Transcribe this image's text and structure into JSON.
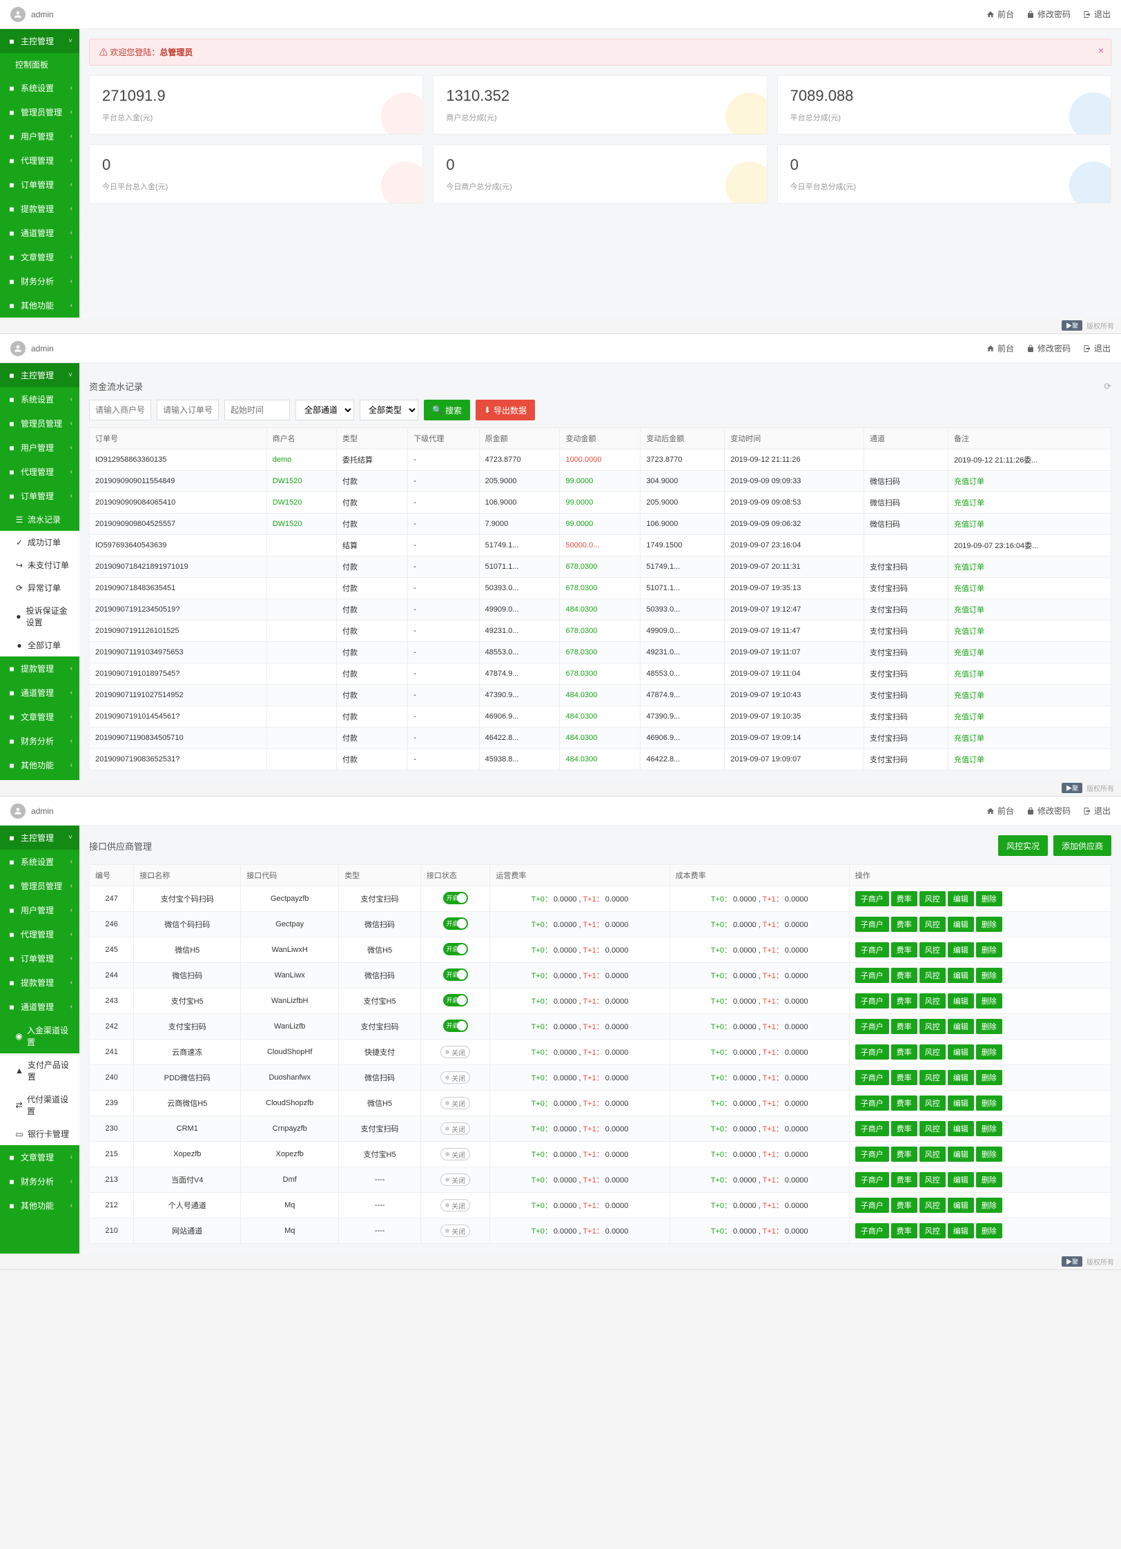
{
  "common": {
    "user": "admin",
    "nav_front": "前台",
    "nav_pwd": "修改密码",
    "nav_logout": "退出",
    "footer_badge": "▶聚",
    "footer_text": "版权所有"
  },
  "panel1": {
    "sidebar": [
      {
        "label": "主控管理",
        "top": true
      },
      {
        "label": "控制面板",
        "sub": true,
        "active": true
      },
      {
        "label": "系统设置"
      },
      {
        "label": "管理员管理"
      },
      {
        "label": "用户管理"
      },
      {
        "label": "代理管理"
      },
      {
        "label": "订单管理"
      },
      {
        "label": "提款管理"
      },
      {
        "label": "通道管理"
      },
      {
        "label": "文章管理"
      },
      {
        "label": "财务分析"
      },
      {
        "label": "其他功能"
      }
    ],
    "alert_prefix": "欢迎您登陆：",
    "alert_role": "总管理员",
    "cards_top": [
      {
        "value": "271091.9",
        "label": "平台总入金(元)",
        "color": "#f39c8a"
      },
      {
        "value": "1310.352",
        "label": "商户总分成(元)",
        "color": "#f1c40f"
      },
      {
        "value": "7089.088",
        "label": "平台总分成(元)",
        "color": "#3498db"
      }
    ],
    "cards_bottom": [
      {
        "value": "0",
        "label": "今日平台总入金(元)",
        "color": "#f39c8a"
      },
      {
        "value": "0",
        "label": "今日商户总分成(元)",
        "color": "#f1c40f"
      },
      {
        "value": "0",
        "label": "今日平台总分成(元)",
        "color": "#3498db"
      }
    ]
  },
  "panel2": {
    "sidebar": [
      {
        "label": "主控管理",
        "top": true
      },
      {
        "label": "系统设置"
      },
      {
        "label": "管理员管理"
      },
      {
        "label": "用户管理"
      },
      {
        "label": "代理管理"
      },
      {
        "label": "订单管理",
        "expanded": true
      }
    ],
    "sidebar_sub": [
      {
        "label": "流水记录",
        "icon": "☰",
        "active": true
      },
      {
        "label": "成功订单",
        "icon": "✓"
      },
      {
        "label": "未支付订单",
        "icon": "↪"
      },
      {
        "label": "异常订单",
        "icon": "⟳"
      },
      {
        "label": "投诉保证金设置",
        "icon": "●"
      },
      {
        "label": "全部订单",
        "icon": "●"
      }
    ],
    "sidebar_after": [
      {
        "label": "提款管理"
      },
      {
        "label": "通道管理"
      },
      {
        "label": "文章管理"
      },
      {
        "label": "财务分析"
      },
      {
        "label": "其他功能"
      }
    ],
    "title": "资金流水记录",
    "filters": {
      "merchant_ph": "请输入商户号",
      "order_ph": "请输入订单号",
      "start_ph": "起始时间",
      "channel_ph": "全部通道",
      "type_ph": "全部类型",
      "search_btn": "搜索",
      "export_btn": "导出数据"
    },
    "columns": [
      "订单号",
      "商户名",
      "类型",
      "下级代理",
      "原金额",
      "变动金额",
      "变动后金额",
      "变动时间",
      "通道",
      "备注"
    ],
    "rows": [
      [
        "IO912958863360135",
        "demo",
        "委托结算",
        "-",
        "4723.8770",
        "1000.0000",
        "3723.8770",
        "2019-09-12 21:11:26",
        "",
        "2019-09-12 21:11:26委..."
      ],
      [
        "2019090909011554849",
        "DW1520",
        "付款",
        "-",
        "205.9000",
        "99.0000",
        "304.9000",
        "2019-09-09 09:09:33",
        "微信扫码",
        "充值订单"
      ],
      [
        "2019090909084065410",
        "DW1520",
        "付款",
        "-",
        "106.9000",
        "99.0000",
        "205.9000",
        "2019-09-09 09:08:53",
        "微信扫码",
        "充值订单"
      ],
      [
        "2019090909804525557",
        "DW1520",
        "付款",
        "-",
        "7.9000",
        "99.0000",
        "106.9000",
        "2019-09-09 09:06:32",
        "微信扫码",
        "充值订单"
      ],
      [
        "IO597693640543639",
        "",
        "结算",
        "-",
        "51749.1...",
        "50000.0...",
        "1749.1500",
        "2019-09-07 23:16:04",
        "",
        "2019-09-07 23:16:04委..."
      ],
      [
        "2019090718421891971019",
        "",
        "付款",
        "-",
        "51071.1...",
        "678.0300",
        "51749.1...",
        "2019-09-07 20:11:31",
        "支付宝扫码",
        "充值订单"
      ],
      [
        "2019090718483635451",
        "",
        "付款",
        "-",
        "50393.0...",
        "678.0300",
        "51071.1...",
        "2019-09-07 19:35:13",
        "支付宝扫码",
        "充值订单"
      ],
      [
        "2019090719123450519?",
        "",
        "付款",
        "-",
        "49909.0...",
        "484.0300",
        "50393.0...",
        "2019-09-07 19:12:47",
        "支付宝扫码",
        "充值订单"
      ],
      [
        "20190907191126101525",
        "",
        "付款",
        "-",
        "49231.0...",
        "678.0300",
        "49909.0...",
        "2019-09-07 19:11:47",
        "支付宝扫码",
        "充值订单"
      ],
      [
        "201909071191034975653",
        "",
        "付款",
        "-",
        "48553.0...",
        "678.0300",
        "49231.0...",
        "2019-09-07 19:11:07",
        "支付宝扫码",
        "充值订单"
      ],
      [
        "2019090719101897545?",
        "",
        "付款",
        "-",
        "47874.9...",
        "678.0300",
        "48553.0...",
        "2019-09-07 19:11:04",
        "支付宝扫码",
        "充值订单"
      ],
      [
        "201909071191027514952",
        "",
        "付款",
        "-",
        "47390.9...",
        "484.0300",
        "47874.9...",
        "2019-09-07 19:10:43",
        "支付宝扫码",
        "充值订单"
      ],
      [
        "2019090719101454561?",
        "",
        "付款",
        "-",
        "46906.9...",
        "484.0300",
        "47390.9...",
        "2019-09-07 19:10:35",
        "支付宝扫码",
        "充值订单"
      ],
      [
        "201909071190834505710",
        "",
        "付款",
        "-",
        "46422.8...",
        "484.0300",
        "46906.9...",
        "2019-09-07 19:09:14",
        "支付宝扫码",
        "充值订单"
      ],
      [
        "2019090719083652531?",
        "",
        "付款",
        "-",
        "45938.8...",
        "484.0300",
        "46422.8...",
        "2019-09-07 19:09:07",
        "支付宝扫码",
        "充值订单"
      ]
    ],
    "red_change_rows": [
      0,
      4
    ]
  },
  "panel3": {
    "sidebar": [
      {
        "label": "主控管理",
        "top": true
      },
      {
        "label": "系统设置"
      },
      {
        "label": "管理员管理"
      },
      {
        "label": "用户管理"
      },
      {
        "label": "代理管理"
      },
      {
        "label": "订单管理"
      },
      {
        "label": "提款管理"
      },
      {
        "label": "通道管理",
        "expanded": true
      }
    ],
    "sidebar_sub": [
      {
        "label": "入金渠道设置",
        "icon": "◉",
        "active": true
      },
      {
        "label": "支付产品设置",
        "icon": "▲"
      },
      {
        "label": "代付渠道设置",
        "icon": "⇄"
      },
      {
        "label": "银行卡管理",
        "icon": "▭"
      }
    ],
    "sidebar_after": [
      {
        "label": "文章管理"
      },
      {
        "label": "财务分析"
      },
      {
        "label": "其他功能"
      }
    ],
    "title": "接口供应商管理",
    "btn_risk": "风控实况",
    "btn_add": "添加供应商",
    "columns": [
      "编号",
      "接口名称",
      "接口代码",
      "类型",
      "接口状态",
      "运营费率",
      "成本费率",
      "操作"
    ],
    "toggle_on": "开启",
    "toggle_off": "关闭",
    "ops": [
      "子商户",
      "费率",
      "风控",
      "编辑",
      "删除"
    ],
    "rate_t0": "T+0：",
    "rate_t1": "T+1：",
    "rows": [
      {
        "id": "247",
        "name": "支付宝个码扫码",
        "code": "Gectpayzfb",
        "type": "支付宝扫码",
        "on": true,
        "r1": [
          "0.0000",
          "0.0000"
        ],
        "r2": [
          "0.0000",
          "0.0000"
        ]
      },
      {
        "id": "246",
        "name": "微信个码扫码",
        "code": "Gectpay",
        "type": "微信扫码",
        "on": true,
        "r1": [
          "0.0000",
          "0.0000"
        ],
        "r2": [
          "0.0000",
          "0.0000"
        ]
      },
      {
        "id": "245",
        "name": "微信H5",
        "code": "WanLiwxH",
        "type": "微信H5",
        "on": true,
        "r1": [
          "0.0000",
          "0.0000"
        ],
        "r2": [
          "0.0000",
          "0.0000"
        ]
      },
      {
        "id": "244",
        "name": "微信扫码",
        "code": "WanLiwx",
        "type": "微信扫码",
        "on": true,
        "r1": [
          "0.0000",
          "0.0000"
        ],
        "r2": [
          "0.0000",
          "0.0000"
        ]
      },
      {
        "id": "243",
        "name": "支付宝H5",
        "code": "WanLizfbH",
        "type": "支付宝H5",
        "on": true,
        "r1": [
          "0.0000",
          "0.0000"
        ],
        "r2": [
          "0.0000",
          "0.0000"
        ]
      },
      {
        "id": "242",
        "name": "支付宝扫码",
        "code": "WanLizfb",
        "type": "支付宝扫码",
        "on": true,
        "r1": [
          "0.0000",
          "0.0000"
        ],
        "r2": [
          "0.0000",
          "0.0000"
        ]
      },
      {
        "id": "241",
        "name": "云商速冻",
        "code": "CloudShopHf",
        "type": "快捷支付",
        "on": false,
        "r1": [
          "0.0000",
          "0.0000"
        ],
        "r2": [
          "0.0000",
          "0.0000"
        ]
      },
      {
        "id": "240",
        "name": "PDD微信扫码",
        "code": "Duoshanfwx",
        "type": "微信扫码",
        "on": false,
        "r1": [
          "0.0000",
          "0.0000"
        ],
        "r2": [
          "0.0000",
          "0.0000"
        ]
      },
      {
        "id": "239",
        "name": "云商微信H5",
        "code": "CloudShopzfb",
        "type": "微信H5",
        "on": false,
        "r1": [
          "0.0000",
          "0.0000"
        ],
        "r2": [
          "0.0000",
          "0.0000"
        ]
      },
      {
        "id": "230",
        "name": "CRM1",
        "code": "Crnpayzfb",
        "type": "支付宝扫码",
        "on": false,
        "r1": [
          "0.0000",
          "0.0000"
        ],
        "r2": [
          "0.0000",
          "0.0000"
        ]
      },
      {
        "id": "215",
        "name": "Xopezfb",
        "code": "Xopezfb",
        "type": "支付宝H5",
        "on": false,
        "r1": [
          "0.0000",
          "0.0000"
        ],
        "r2": [
          "0.0000",
          "0.0000"
        ]
      },
      {
        "id": "213",
        "name": "当面付V4",
        "code": "Dmf",
        "type": "----",
        "on": false,
        "r1": [
          "0.0000",
          "0.0000"
        ],
        "r2": [
          "0.0000",
          "0.0000"
        ]
      },
      {
        "id": "212",
        "name": "个人号通道",
        "code": "Mq",
        "type": "----",
        "on": false,
        "r1": [
          "0.0000",
          "0.0000"
        ],
        "r2": [
          "0.0000",
          "0.0000"
        ]
      },
      {
        "id": "210",
        "name": "网站通道",
        "code": "Mq",
        "type": "----",
        "on": false,
        "r1": [
          "0.0000",
          "0.0000"
        ],
        "r2": [
          "0.0000",
          "0.0000"
        ]
      }
    ]
  }
}
